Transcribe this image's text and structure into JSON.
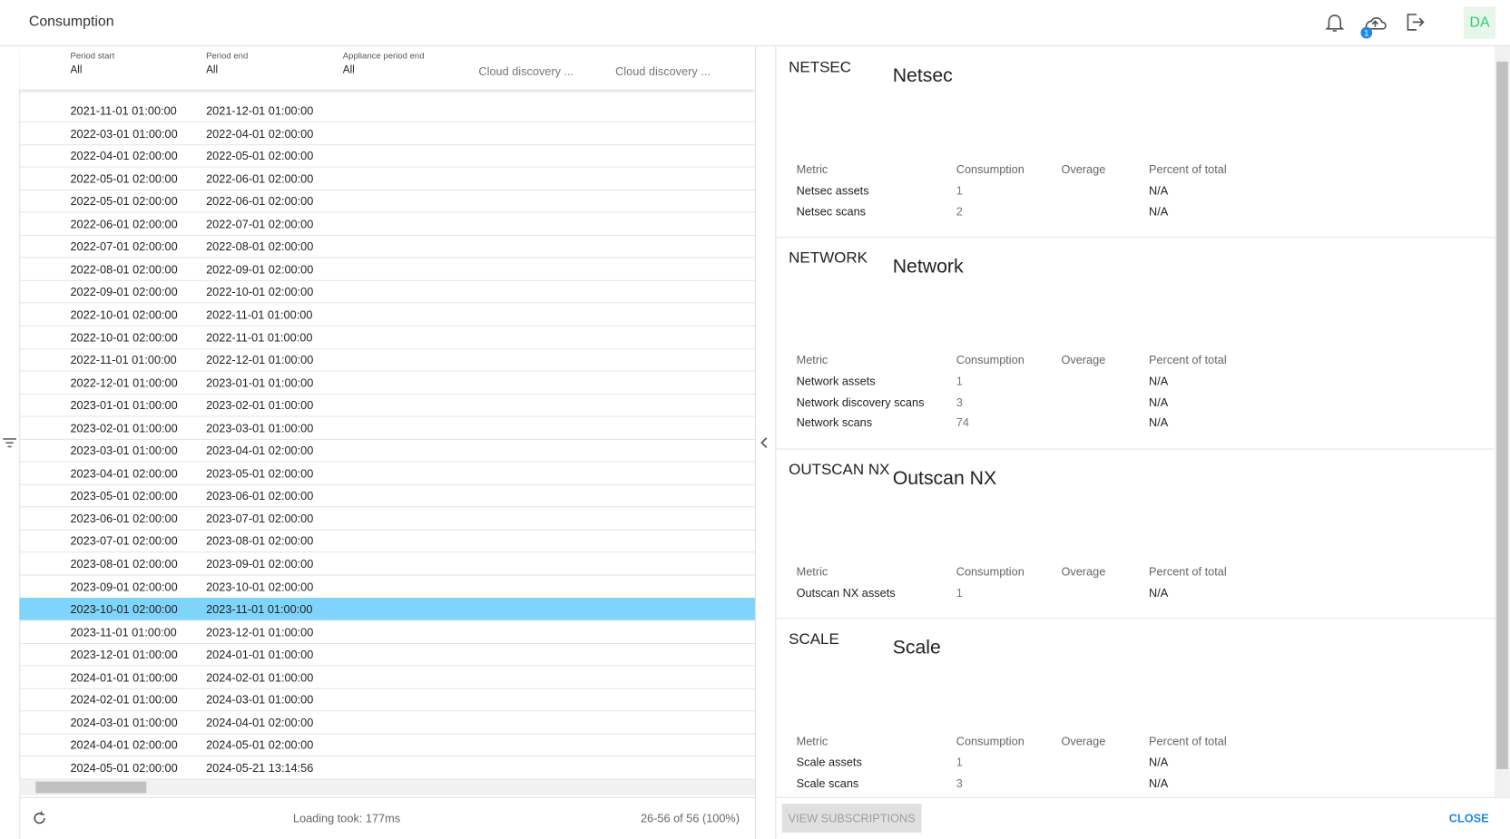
{
  "header": {
    "title": "Consumption",
    "badge": "1",
    "avatar": "DA"
  },
  "table": {
    "columns": [
      {
        "label": "Period start",
        "filter": "All"
      },
      {
        "label": "Period end",
        "filter": "All"
      },
      {
        "label": "Appliance period end",
        "filter": "All"
      },
      {
        "label": "Cloud discovery ..."
      },
      {
        "label": "Cloud discovery ..."
      }
    ],
    "rows": [
      [
        "2021-11-01 01:00:00",
        "2021-12-01 01:00:00"
      ],
      [
        "2022-03-01 01:00:00",
        "2022-04-01 02:00:00"
      ],
      [
        "2022-04-01 02:00:00",
        "2022-05-01 02:00:00"
      ],
      [
        "2022-05-01 02:00:00",
        "2022-06-01 02:00:00"
      ],
      [
        "2022-05-01 02:00:00",
        "2022-06-01 02:00:00"
      ],
      [
        "2022-06-01 02:00:00",
        "2022-07-01 02:00:00"
      ],
      [
        "2022-07-01 02:00:00",
        "2022-08-01 02:00:00"
      ],
      [
        "2022-08-01 02:00:00",
        "2022-09-01 02:00:00"
      ],
      [
        "2022-09-01 02:00:00",
        "2022-10-01 02:00:00"
      ],
      [
        "2022-10-01 02:00:00",
        "2022-11-01 01:00:00"
      ],
      [
        "2022-10-01 02:00:00",
        "2022-11-01 01:00:00"
      ],
      [
        "2022-11-01 01:00:00",
        "2022-12-01 01:00:00"
      ],
      [
        "2022-12-01 01:00:00",
        "2023-01-01 01:00:00"
      ],
      [
        "2023-01-01 01:00:00",
        "2023-02-01 01:00:00"
      ],
      [
        "2023-02-01 01:00:00",
        "2023-03-01 01:00:00"
      ],
      [
        "2023-03-01 01:00:00",
        "2023-04-01 02:00:00"
      ],
      [
        "2023-04-01 02:00:00",
        "2023-05-01 02:00:00"
      ],
      [
        "2023-05-01 02:00:00",
        "2023-06-01 02:00:00"
      ],
      [
        "2023-06-01 02:00:00",
        "2023-07-01 02:00:00"
      ],
      [
        "2023-07-01 02:00:00",
        "2023-08-01 02:00:00"
      ],
      [
        "2023-08-01 02:00:00",
        "2023-09-01 02:00:00"
      ],
      [
        "2023-09-01 02:00:00",
        "2023-10-01 02:00:00"
      ],
      [
        "2023-10-01 02:00:00",
        "2023-11-01 01:00:00"
      ],
      [
        "2023-11-01 01:00:00",
        "2023-12-01 01:00:00"
      ],
      [
        "2023-12-01 01:00:00",
        "2024-01-01 01:00:00"
      ],
      [
        "2024-01-01 01:00:00",
        "2024-02-01 01:00:00"
      ],
      [
        "2024-02-01 01:00:00",
        "2024-03-01 01:00:00"
      ],
      [
        "2024-03-01 01:00:00",
        "2024-04-01 02:00:00"
      ],
      [
        "2024-04-01 02:00:00",
        "2024-05-01 02:00:00"
      ],
      [
        "2024-05-01 02:00:00",
        "2024-05-21 13:14:56"
      ]
    ],
    "selected_row": 22,
    "footer": {
      "loading": "Loading took: 177ms",
      "range": "26-56 of 56 (100%)"
    }
  },
  "details": {
    "metric_headers": [
      "Metric",
      "Consumption",
      "Overage",
      "Percent of total"
    ],
    "products": [
      {
        "name": "Netsec",
        "badge": "NETSEC",
        "color": "#e91e63",
        "metrics": [
          [
            "Netsec assets",
            "1",
            "N/A"
          ],
          [
            "Netsec scans",
            "2",
            "N/A"
          ]
        ]
      },
      {
        "name": "Network",
        "badge": "NETWORK",
        "color": "#e91e63",
        "metrics": [
          [
            "Network assets",
            "1",
            "N/A"
          ],
          [
            "Network discovery scans",
            "3",
            "N/A"
          ],
          [
            "Network scans",
            "74",
            "N/A"
          ]
        ]
      },
      {
        "name": "Outscan NX",
        "badge": "OUTSCAN NX",
        "color": "#81c784",
        "metrics": [
          [
            "Outscan NX assets",
            "1",
            "N/A"
          ]
        ]
      },
      {
        "name": "Scale",
        "badge": "SCALE",
        "color": "#9c27b0",
        "metrics": [
          [
            "Scale assets",
            "1",
            "N/A"
          ],
          [
            "Scale scans",
            "3",
            "N/A"
          ]
        ]
      }
    ],
    "buttons": {
      "view": "VIEW SUBSCRIPTIONS",
      "close": "CLOSE"
    }
  }
}
